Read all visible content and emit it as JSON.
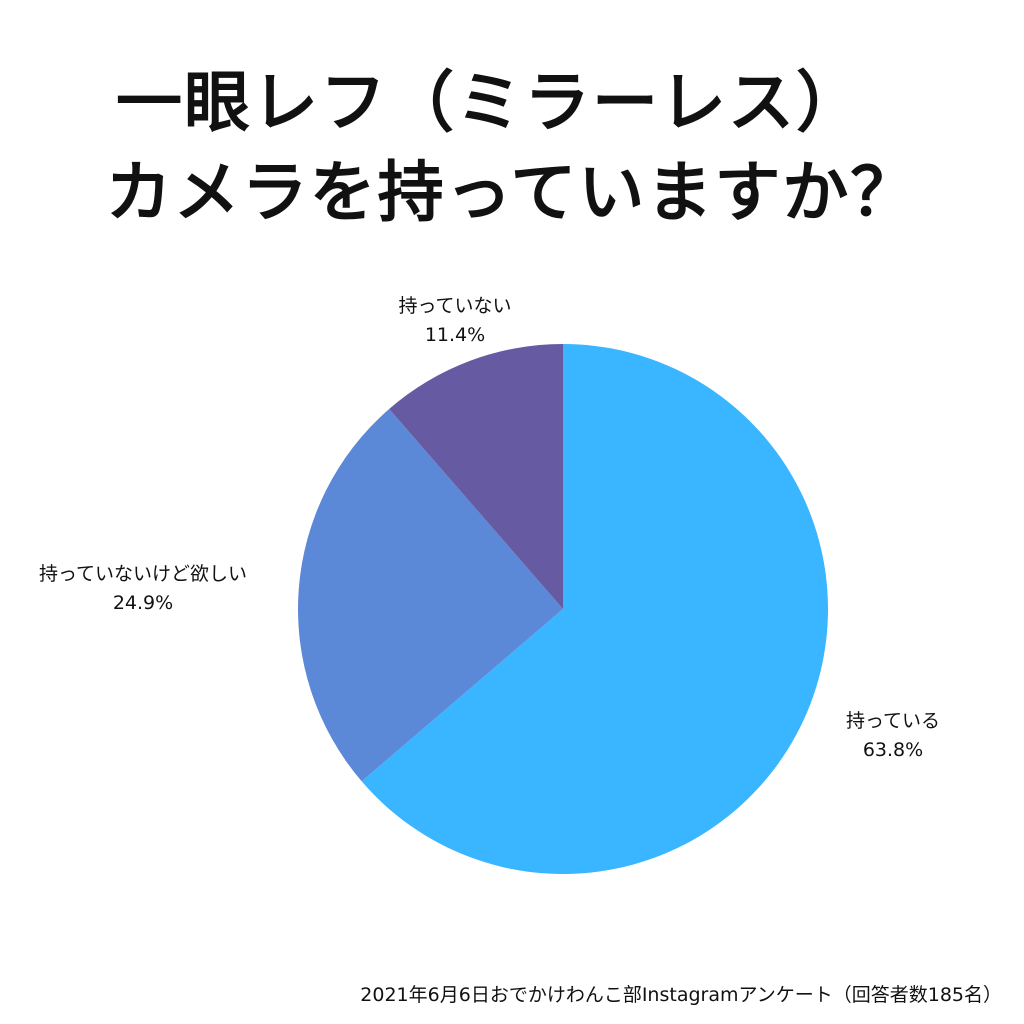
{
  "title": {
    "line1": "一眼レフ（ミラーレス）",
    "line2": "カメラを持っていますか？"
  },
  "chart_data": {
    "type": "pie",
    "start_angle_deg": 0,
    "direction": "clockwise",
    "slices": [
      {
        "label": "持っている",
        "value": 63.8,
        "value_label": "63.8%",
        "color": "#3AB5FF"
      },
      {
        "label": "持っていないけど欲しい",
        "value": 24.9,
        "value_label": "24.9%",
        "color": "#5C88D8"
      },
      {
        "label": "持っていない",
        "value": 11.4,
        "value_label": "11.4%",
        "color": "#665BA3"
      }
    ],
    "legend": "none"
  },
  "footer": {
    "note": "2021年6月6日おでかけわんこ部Instagramアンケート（回答者数185名）"
  }
}
